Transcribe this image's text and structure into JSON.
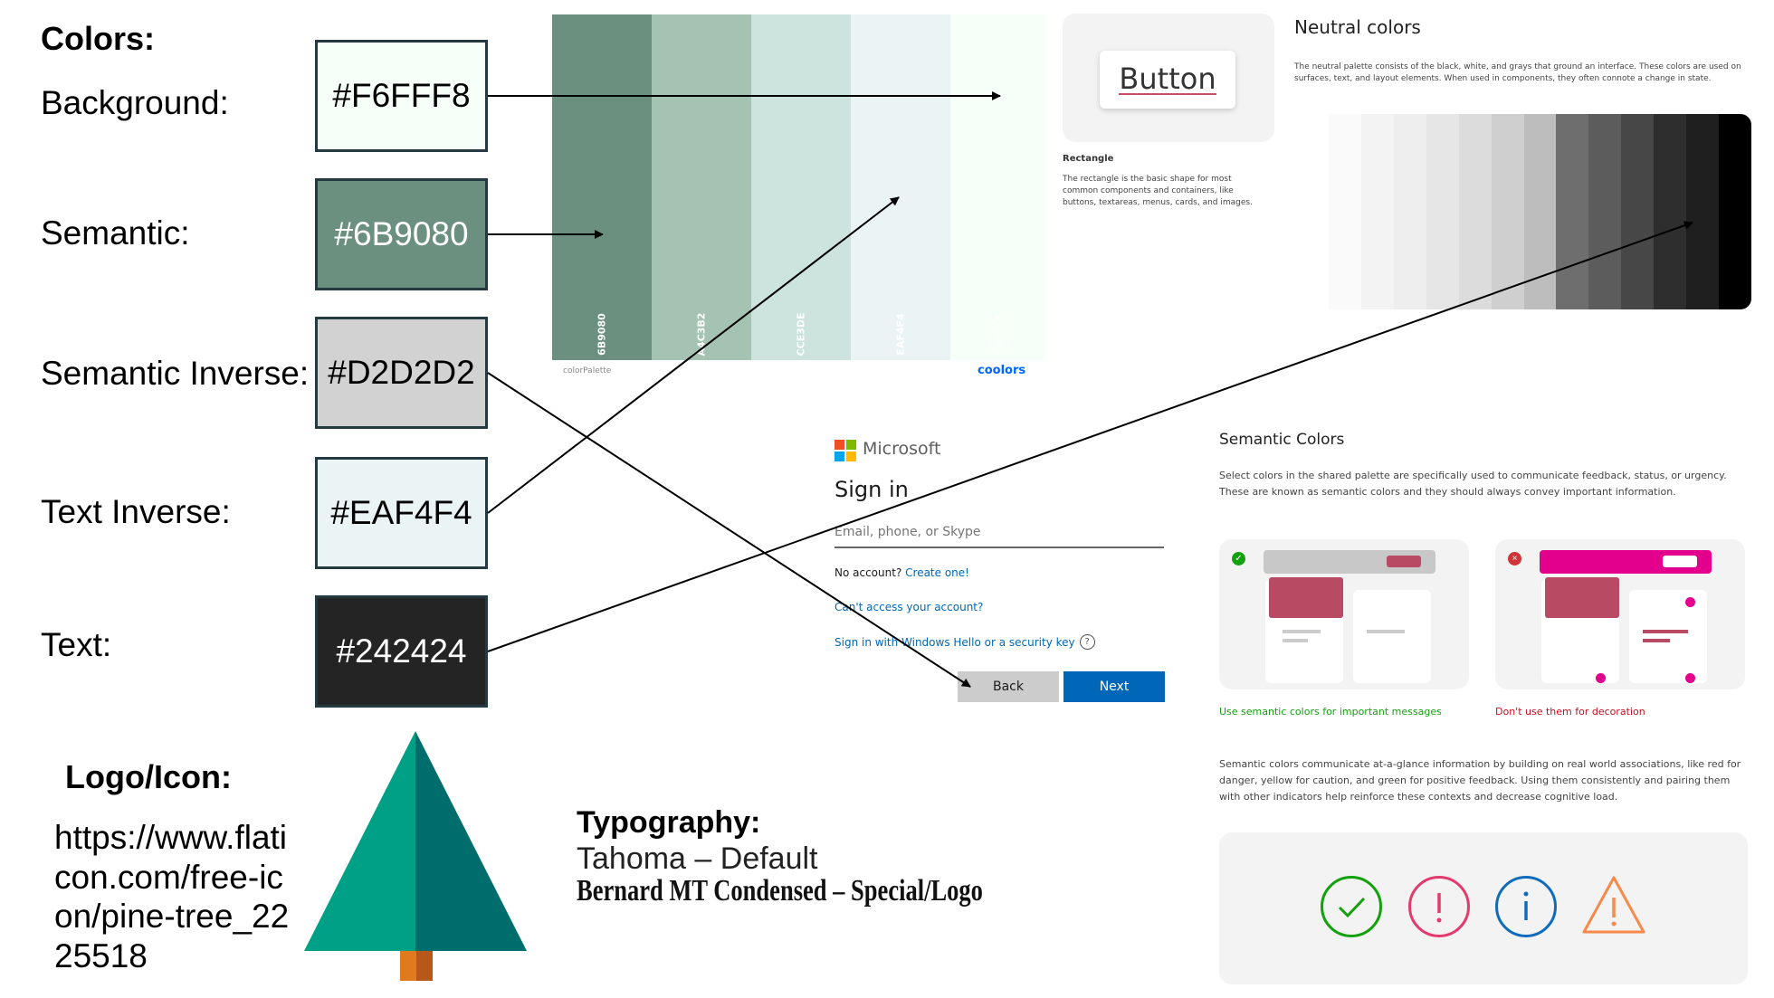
{
  "colors": {
    "heading": "Colors:",
    "items": [
      {
        "label": "Background:",
        "hex": "#F6FFF8",
        "color": "#F6FFF8",
        "text_color": "#000000"
      },
      {
        "label": "Semantic:",
        "hex": "#6B9080",
        "color": "#6B9080",
        "text_color": "#ffffff"
      },
      {
        "label": "Semantic Inverse:",
        "hex": "#D2D2D2",
        "color": "#D2D2D2",
        "text_color": "#000000"
      },
      {
        "label": "Text Inverse:",
        "hex": "#EAF4F4",
        "color": "#EAF4F4",
        "text_color": "#000000"
      },
      {
        "label": "Text:",
        "hex": "#242424",
        "color": "#242424",
        "text_color": "#ffffff"
      }
    ]
  },
  "palette": {
    "colors": [
      "6B9080",
      "A4C3B2",
      "CCE3DE",
      "EAF4F4",
      "F6FFF8"
    ],
    "caption": "colorPalette",
    "brand": "coolors"
  },
  "button_card": {
    "button_label": "Button",
    "title": "Rectangle",
    "description": "The rectangle is the basic shape for most common components and containers, like buttons, textareas, menus, cards, and images."
  },
  "neutral": {
    "title": "Neutral colors",
    "description": "The neutral palette consists of the black, white, and grays that ground an interface. These colors are used on surfaces, text, and layout elements. When used in components, they often connote a change in state."
  },
  "signin": {
    "brand": "Microsoft",
    "title": "Sign in",
    "placeholder": "Email, phone, or Skype",
    "no_account": "No account?",
    "create_one": "Create one!",
    "cant_access": "Can't access your account?",
    "windows_hello": "Sign in with Windows Hello or a security key",
    "back": "Back",
    "next": "Next"
  },
  "semantic": {
    "title": "Semantic Colors",
    "intro": "Select colors in the shared palette are specifically used to communicate feedback, status, or urgency. These are known as semantic colors and they should always convey important information.",
    "do_caption": "Use semantic colors for important messages",
    "dont_caption": "Don't use them for decoration",
    "body": "Semantic colors communicate at-a-glance information by building on real world associations, like red for danger, yellow for caution, and green for positive feedback. Using them consistently and pairing them with other indicators help reinforce these contexts and decrease cognitive load."
  },
  "logo": {
    "heading": "Logo/Icon:",
    "url": "https://www.flaticon.com/free-icon/pine-tree_2225518"
  },
  "typography": {
    "heading": "Typography:",
    "default": "Tahoma – Default",
    "special": "Bernard MT Condensed – Special/Logo"
  }
}
